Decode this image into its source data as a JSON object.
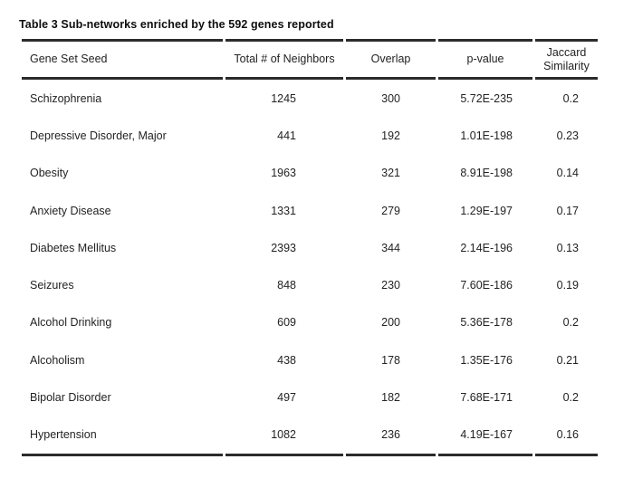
{
  "caption": "Table 3 Sub-networks enriched by the 592 genes reported",
  "colors": {
    "rule": "#2b2b2b",
    "text": "#232323",
    "background": "#ffffff"
  },
  "table": {
    "columns": [
      {
        "key": "gene-set-seed",
        "label": "Gene Set Seed"
      },
      {
        "key": "total-neighbors",
        "label": "Total # of Neighbors"
      },
      {
        "key": "overlap",
        "label": "Overlap"
      },
      {
        "key": "p-value",
        "label": "p-value"
      },
      {
        "key": "jaccard-similarity",
        "label": "Jaccard Similarity"
      }
    ],
    "rows": [
      [
        "Schizophrenia",
        "1245",
        "300",
        "5.72E-235",
        "0.2"
      ],
      [
        "Depressive Disorder, Major",
        "441",
        "192",
        "1.01E-198",
        "0.23"
      ],
      [
        "Obesity",
        "1963",
        "321",
        "8.91E-198",
        "0.14"
      ],
      [
        "Anxiety Disease",
        "1331",
        "279",
        "1.29E-197",
        "0.17"
      ],
      [
        "Diabetes Mellitus",
        "2393",
        "344",
        "2.14E-196",
        "0.13"
      ],
      [
        "Seizures",
        "848",
        "230",
        "7.60E-186",
        "0.19"
      ],
      [
        "Alcohol Drinking",
        "609",
        "200",
        "5.36E-178",
        "0.2"
      ],
      [
        "Alcoholism",
        "438",
        "178",
        "1.35E-176",
        "0.21"
      ],
      [
        "Bipolar Disorder",
        "497",
        "182",
        "7.68E-171",
        "0.2"
      ],
      [
        "Hypertension",
        "1082",
        "236",
        "4.19E-167",
        "0.16"
      ]
    ]
  }
}
